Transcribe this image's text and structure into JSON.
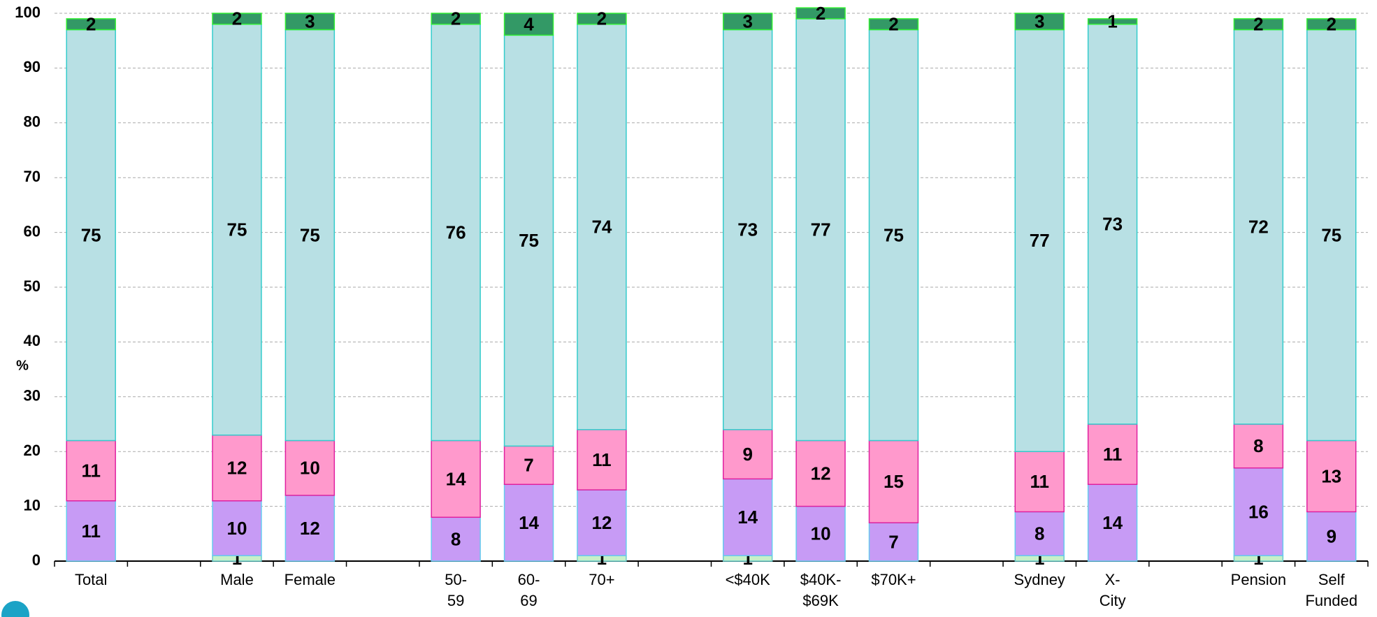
{
  "chart_data": {
    "type": "stacked_bar",
    "y_label": "%",
    "categories": [
      "Total",
      null,
      "Male",
      "Female",
      null,
      "50-59",
      "60-69",
      "70+",
      null,
      "<$40K",
      "$40K-$69K",
      "$70K+",
      null,
      "Sydney",
      "X-City",
      null,
      "Pension",
      "Self Funded"
    ],
    "series": [
      {
        "color": "#c8f0c8",
        "border": "#66cccc",
        "values": [
          null,
          null,
          1,
          null,
          null,
          null,
          null,
          1,
          null,
          1,
          null,
          null,
          null,
          1,
          null,
          null,
          1,
          null
        ]
      },
      {
        "color": "#c79bf5",
        "border": "#66ccee",
        "values": [
          11,
          null,
          10,
          12,
          null,
          8,
          14,
          12,
          null,
          14,
          10,
          7,
          null,
          8,
          14,
          null,
          16,
          9
        ]
      },
      {
        "color": "#ff99cc",
        "border": "#e020a0",
        "values": [
          11,
          null,
          12,
          10,
          null,
          14,
          7,
          11,
          null,
          9,
          12,
          15,
          null,
          11,
          11,
          null,
          8,
          13
        ]
      },
      {
        "color": "#b8e0e4",
        "border": "#33cccc",
        "values": [
          75,
          null,
          75,
          75,
          null,
          76,
          75,
          74,
          null,
          73,
          77,
          75,
          null,
          77,
          73,
          null,
          72,
          75
        ]
      },
      {
        "color": "#339966",
        "border": "#33ee33",
        "values": [
          2,
          null,
          2,
          3,
          null,
          2,
          4,
          2,
          null,
          3,
          2,
          2,
          null,
          3,
          1,
          null,
          2,
          2
        ]
      }
    ],
    "ylim": [
      0,
      100
    ],
    "yticks": [
      0,
      10,
      20,
      30,
      40,
      50,
      60,
      70,
      80,
      90,
      100
    ],
    "grid": true
  }
}
